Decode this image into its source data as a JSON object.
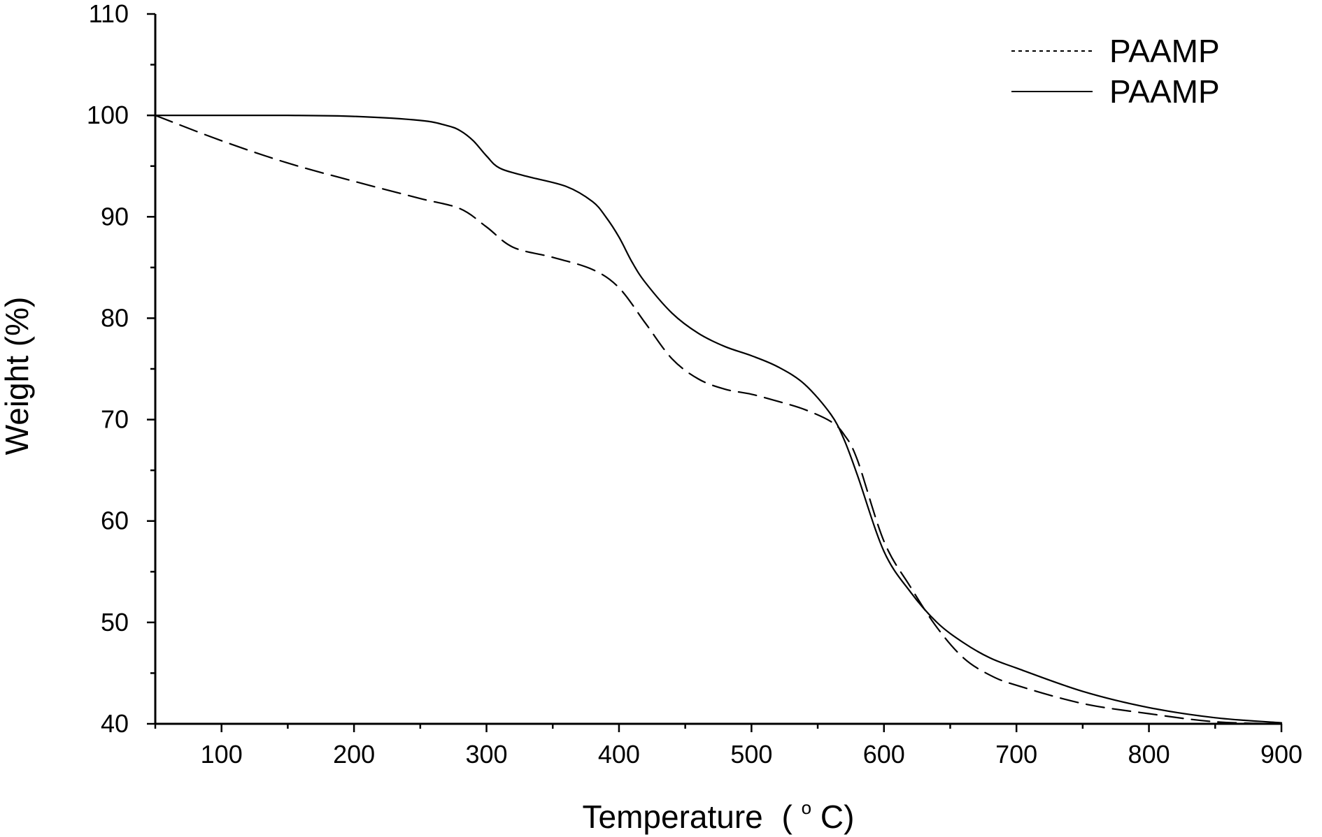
{
  "chart_data": {
    "type": "line",
    "title": "",
    "xlabel": "Temperature",
    "xlabel_unit_prefix": "(",
    "xlabel_unit_degree": "o",
    "xlabel_unit_suffix": "C)",
    "ylabel": "Weight (%)",
    "xlim": [
      50,
      900
    ],
    "ylim": [
      40,
      110
    ],
    "x_ticks": [
      100,
      200,
      300,
      400,
      500,
      600,
      700,
      800,
      900
    ],
    "x_minor_step": 50,
    "y_ticks": [
      40,
      50,
      60,
      70,
      80,
      90,
      100,
      110
    ],
    "y_minor_step": 5,
    "grid": false,
    "legend_position": "top-right",
    "series": [
      {
        "name": "PAAMP",
        "style": "dashed",
        "x": [
          50,
          100,
          150,
          200,
          250,
          280,
          300,
          320,
          350,
          380,
          400,
          420,
          440,
          460,
          480,
          500,
          520,
          540,
          560,
          570,
          580,
          600,
          620,
          640,
          660,
          680,
          700,
          750,
          800,
          850,
          900
        ],
        "y": [
          100,
          97.5,
          95.3,
          93.5,
          91.8,
          90.8,
          89.0,
          87.0,
          86.0,
          84.8,
          83.0,
          79.5,
          76.0,
          74.0,
          73.0,
          72.5,
          71.8,
          71.0,
          69.8,
          68.5,
          66.0,
          58.0,
          53.5,
          49.5,
          46.5,
          44.8,
          43.8,
          42.0,
          41.0,
          40.2,
          40.0
        ]
      },
      {
        "name": "PAAMP",
        "style": "solid",
        "x": [
          50,
          100,
          150,
          200,
          250,
          270,
          280,
          290,
          300,
          310,
          330,
          360,
          380,
          390,
          400,
          410,
          420,
          440,
          460,
          480,
          500,
          520,
          540,
          560,
          570,
          580,
          600,
          620,
          640,
          660,
          680,
          700,
          750,
          800,
          850,
          900
        ],
        "y": [
          100,
          100,
          100,
          99.9,
          99.5,
          99.0,
          98.5,
          97.5,
          96.0,
          94.8,
          94.0,
          93.0,
          91.5,
          90.0,
          88.0,
          85.5,
          83.5,
          80.5,
          78.5,
          77.2,
          76.3,
          75.2,
          73.5,
          70.5,
          68.0,
          64.5,
          57.0,
          53.0,
          50.0,
          48.0,
          46.5,
          45.5,
          43.2,
          41.6,
          40.6,
          40.1
        ]
      }
    ]
  }
}
